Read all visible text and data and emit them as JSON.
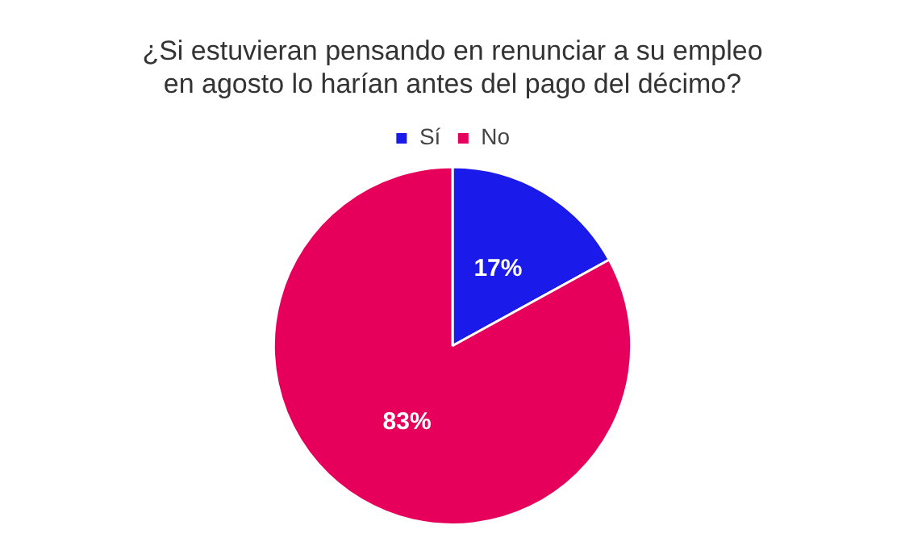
{
  "chart_data": {
    "type": "pie",
    "title": "¿Si estuvieran pensando en renunciar a su empleo en agosto lo harían antes del pago del décimo?",
    "categories": [
      "Sí",
      "No"
    ],
    "values": [
      17,
      83
    ],
    "colors": [
      "#1a1aeb",
      "#e6005c"
    ],
    "value_labels": [
      "17%",
      "83%"
    ],
    "legend": "top"
  }
}
